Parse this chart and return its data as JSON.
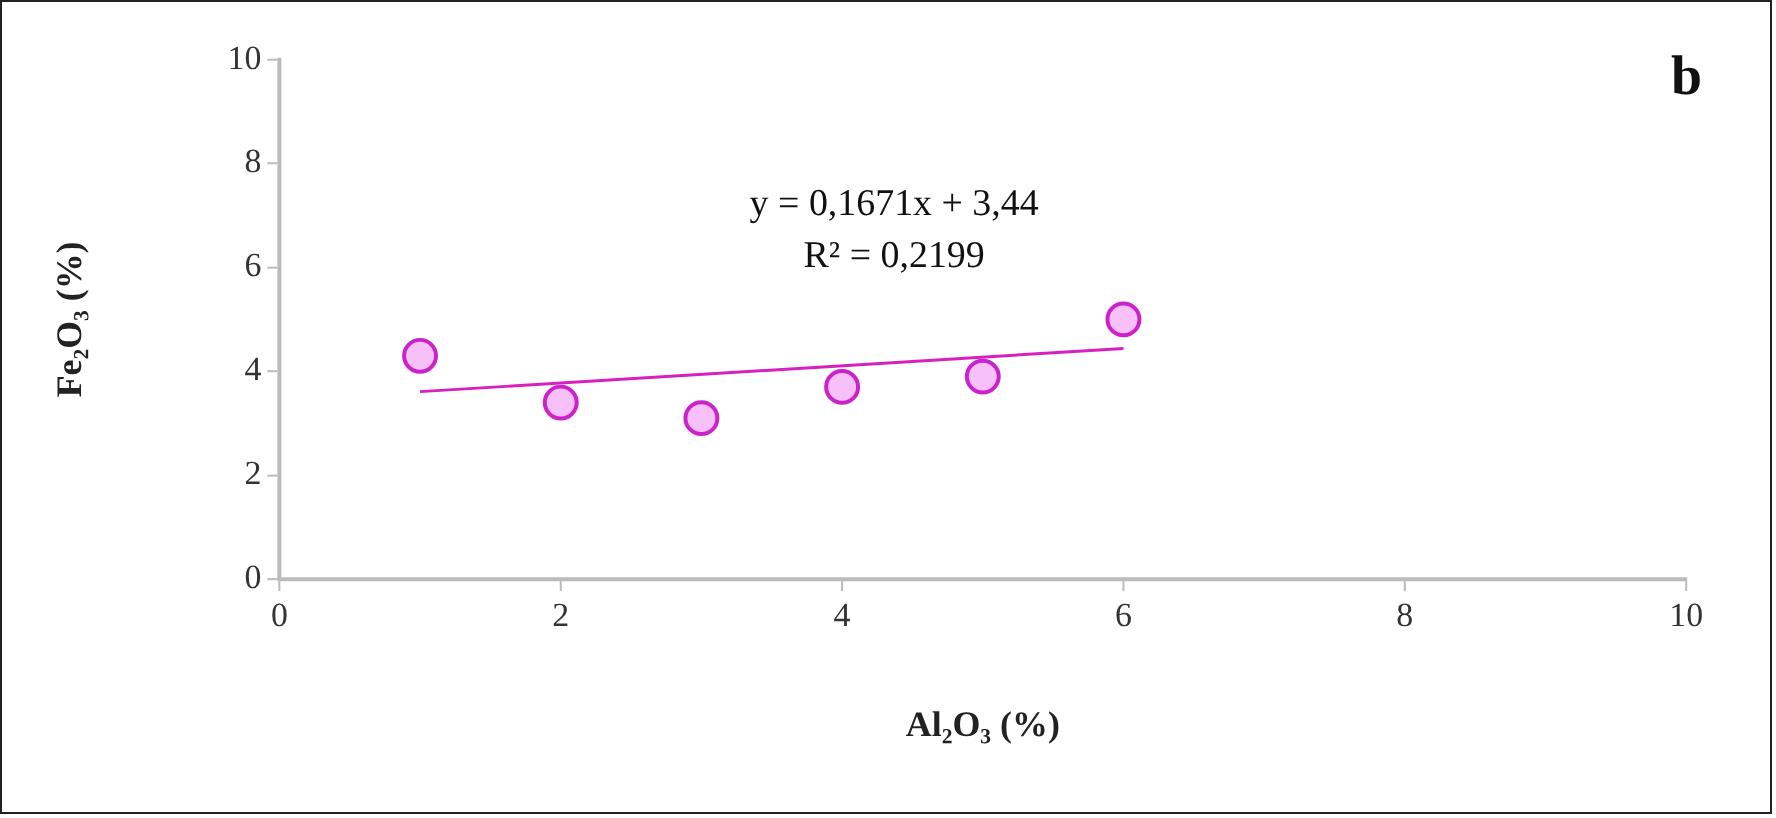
{
  "chart_data": {
    "type": "scatter",
    "xlabel": "Al₂O₃ (%)",
    "ylabel": "Fe₂O₃ (%)",
    "xlim": [
      0,
      10
    ],
    "xticks": [
      0,
      2,
      4,
      6,
      8,
      10
    ],
    "ylim": [
      0,
      10
    ],
    "yticks": [
      0,
      2,
      4,
      6,
      8,
      10
    ],
    "grid": false,
    "legend": false,
    "series": [
      {
        "marker": "circle",
        "color": "#cc22cc",
        "x": [
          1,
          2,
          3,
          4,
          5,
          6
        ],
        "values": [
          4.3,
          3.4,
          3.1,
          3.7,
          3.9,
          5.0
        ]
      },
      {
        "type": "line",
        "marker": "none",
        "color": "#d81fbf",
        "x": [
          1,
          6
        ],
        "values": [
          3.61,
          4.44
        ]
      }
    ],
    "annotations": [
      "y = 0,1671x + 3,44",
      "R² = 0,2199",
      "b"
    ]
  }
}
